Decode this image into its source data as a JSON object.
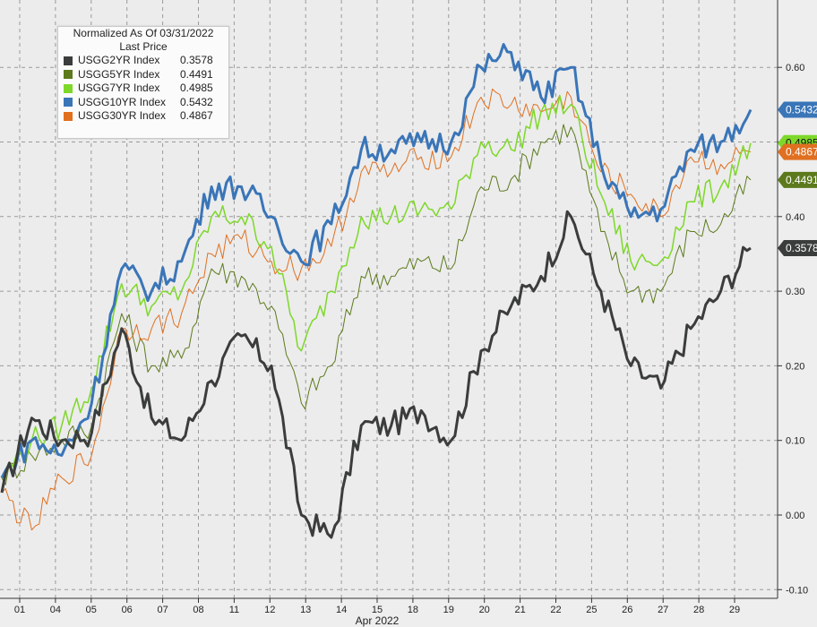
{
  "chart_data": {
    "type": "line",
    "title": "",
    "legend": {
      "title_line1": "Normalized As Of 03/31/2022",
      "title_line2": "Last Price",
      "placement": "top-left"
    },
    "x_tick_labels": [
      "01",
      "04",
      "05",
      "06",
      "07",
      "08",
      "11",
      "12",
      "13",
      "14",
      "15",
      "18",
      "19",
      "20",
      "21",
      "22",
      "25",
      "26",
      "27",
      "28",
      "29"
    ],
    "x_month_label": "Apr 2022",
    "ylim": [
      -0.1,
      0.65
    ],
    "y_ticks": [
      "-0.10",
      "0.00",
      "0.10",
      "0.20",
      "0.30",
      "0.40",
      "0.50",
      "0.60"
    ],
    "grid": true,
    "series": [
      {
        "name": "USGG2YR Index",
        "last_price": "0.3578",
        "label": "0.3578",
        "color": "#3b3d3c",
        "values": [
          0.03,
          0.13,
          0.1,
          0.11,
          0.25,
          0.13,
          0.1,
          0.18,
          0.24,
          0.2,
          0.0,
          -0.03,
          0.12,
          0.12,
          0.14,
          0.1,
          0.22,
          0.28,
          0.32,
          0.4,
          0.3,
          0.2,
          0.17,
          0.25,
          0.3,
          0.3578
        ]
      },
      {
        "name": "USGG5YR Index",
        "last_price": "0.4491",
        "label": "0.4491",
        "color": "#5c7a1c",
        "values": [
          0.05,
          0.08,
          0.1,
          0.12,
          0.27,
          0.2,
          0.21,
          0.33,
          0.32,
          0.28,
          0.15,
          0.2,
          0.32,
          0.32,
          0.34,
          0.33,
          0.44,
          0.45,
          0.5,
          0.52,
          0.38,
          0.3,
          0.3,
          0.38,
          0.39,
          0.4491
        ]
      },
      {
        "name": "USGG7YR Index",
        "last_price": "0.4985",
        "label": "0.4985",
        "color": "#7ed82a",
        "values": [
          0.05,
          0.1,
          0.12,
          0.17,
          0.31,
          0.28,
          0.3,
          0.4,
          0.4,
          0.36,
          0.22,
          0.3,
          0.4,
          0.4,
          0.41,
          0.41,
          0.5,
          0.49,
          0.54,
          0.55,
          0.43,
          0.34,
          0.34,
          0.42,
          0.44,
          0.4985
        ]
      },
      {
        "name": "USGG10YR Index",
        "last_price": "0.5432",
        "label": "0.5432",
        "color": "#3a75b8",
        "values": [
          0.05,
          0.1,
          0.08,
          0.15,
          0.33,
          0.3,
          0.34,
          0.44,
          0.44,
          0.4,
          0.34,
          0.39,
          0.49,
          0.49,
          0.5,
          0.5,
          0.6,
          0.62,
          0.56,
          0.6,
          0.47,
          0.4,
          0.41,
          0.49,
          0.5,
          0.5432
        ]
      },
      {
        "name": "USGG30YR Index",
        "last_price": "0.4867",
        "label": "0.4867",
        "color": "#e07020",
        "values": [
          0.03,
          -0.02,
          0.05,
          0.08,
          0.25,
          0.25,
          0.27,
          0.35,
          0.37,
          0.34,
          0.33,
          0.36,
          0.46,
          0.46,
          0.48,
          0.48,
          0.56,
          0.55,
          0.54,
          0.56,
          0.46,
          0.43,
          0.4,
          0.48,
          0.47,
          0.4867
        ]
      }
    ]
  }
}
